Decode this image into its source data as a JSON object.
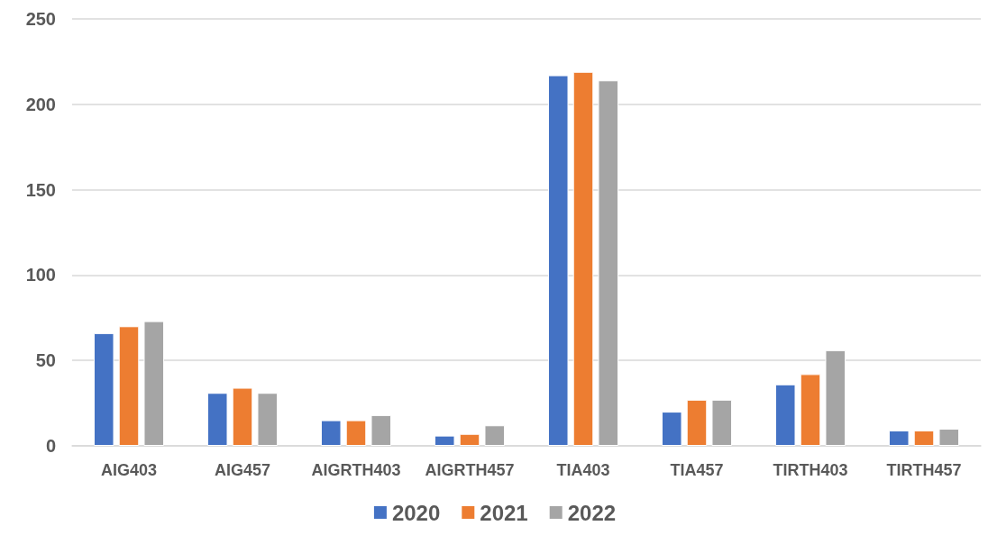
{
  "chart_data": {
    "type": "bar",
    "categories": [
      "AIG403",
      "AIG457",
      "AIGRTH403",
      "AIGRTH457",
      "TIA403",
      "TIA457",
      "TIRTH403",
      "TIRTH457"
    ],
    "series": [
      {
        "name": "2020",
        "color": "#4472c4",
        "values": [
          66,
          31,
          15,
          6,
          217,
          20,
          36,
          9
        ]
      },
      {
        "name": "2021",
        "color": "#ed7d31",
        "values": [
          70,
          34,
          15,
          7,
          219,
          27,
          42,
          9
        ]
      },
      {
        "name": "2022",
        "color": "#a5a5a5",
        "values": [
          73,
          31,
          18,
          12,
          214,
          27,
          56,
          10
        ]
      }
    ],
    "ylim": [
      0,
      250
    ],
    "yticks": [
      0,
      50,
      100,
      150,
      200,
      250
    ],
    "grid": "y",
    "legend": "bottom"
  }
}
